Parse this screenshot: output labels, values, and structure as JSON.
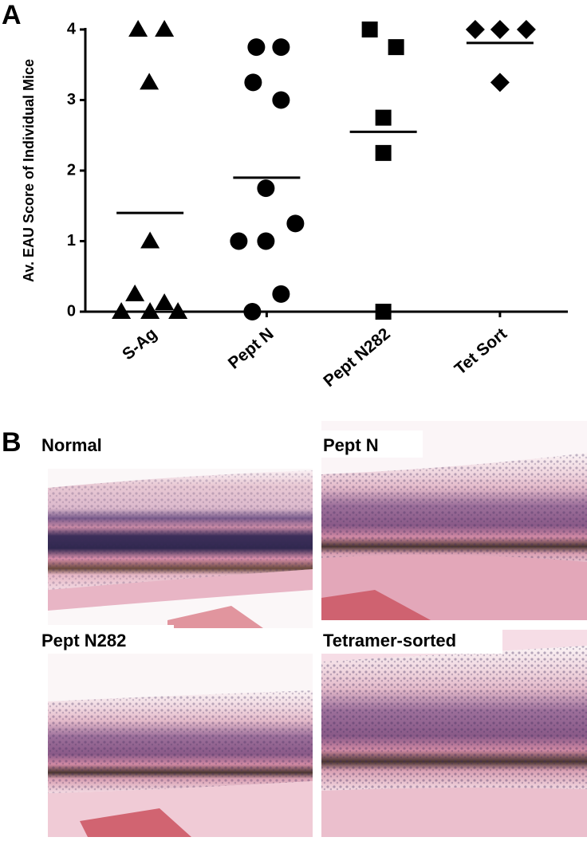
{
  "chart_data": {
    "type": "dot",
    "y_label": "Av. EAU Score of Individual Mice",
    "categories": [
      "S-Ag",
      "Pept N",
      "Pept N282",
      "Tet Sort"
    ],
    "markers": [
      "triangle",
      "circle",
      "square",
      "diamond"
    ],
    "color": "#000000",
    "values": [
      [
        4,
        4,
        3.25,
        1,
        0.25,
        0.125,
        0,
        0,
        0
      ],
      [
        3.75,
        3.75,
        3.25,
        3,
        1.75,
        1.25,
        1,
        1,
        0.25,
        0
      ],
      [
        4,
        3.75,
        2.75,
        2.25,
        0
      ],
      [
        4,
        4,
        4,
        3.25
      ]
    ],
    "means": [
      1.4,
      1.9,
      2.55,
      3.81
    ],
    "ylim": [
      0,
      4
    ],
    "yticks": [
      0,
      1,
      2,
      3,
      4
    ]
  },
  "panel_labels": [
    "A",
    "B"
  ],
  "images": [
    {
      "label": "Normal"
    },
    {
      "label": "Pept N"
    },
    {
      "label": "Pept N282"
    },
    {
      "label": "Tetramer-sorted"
    }
  ]
}
